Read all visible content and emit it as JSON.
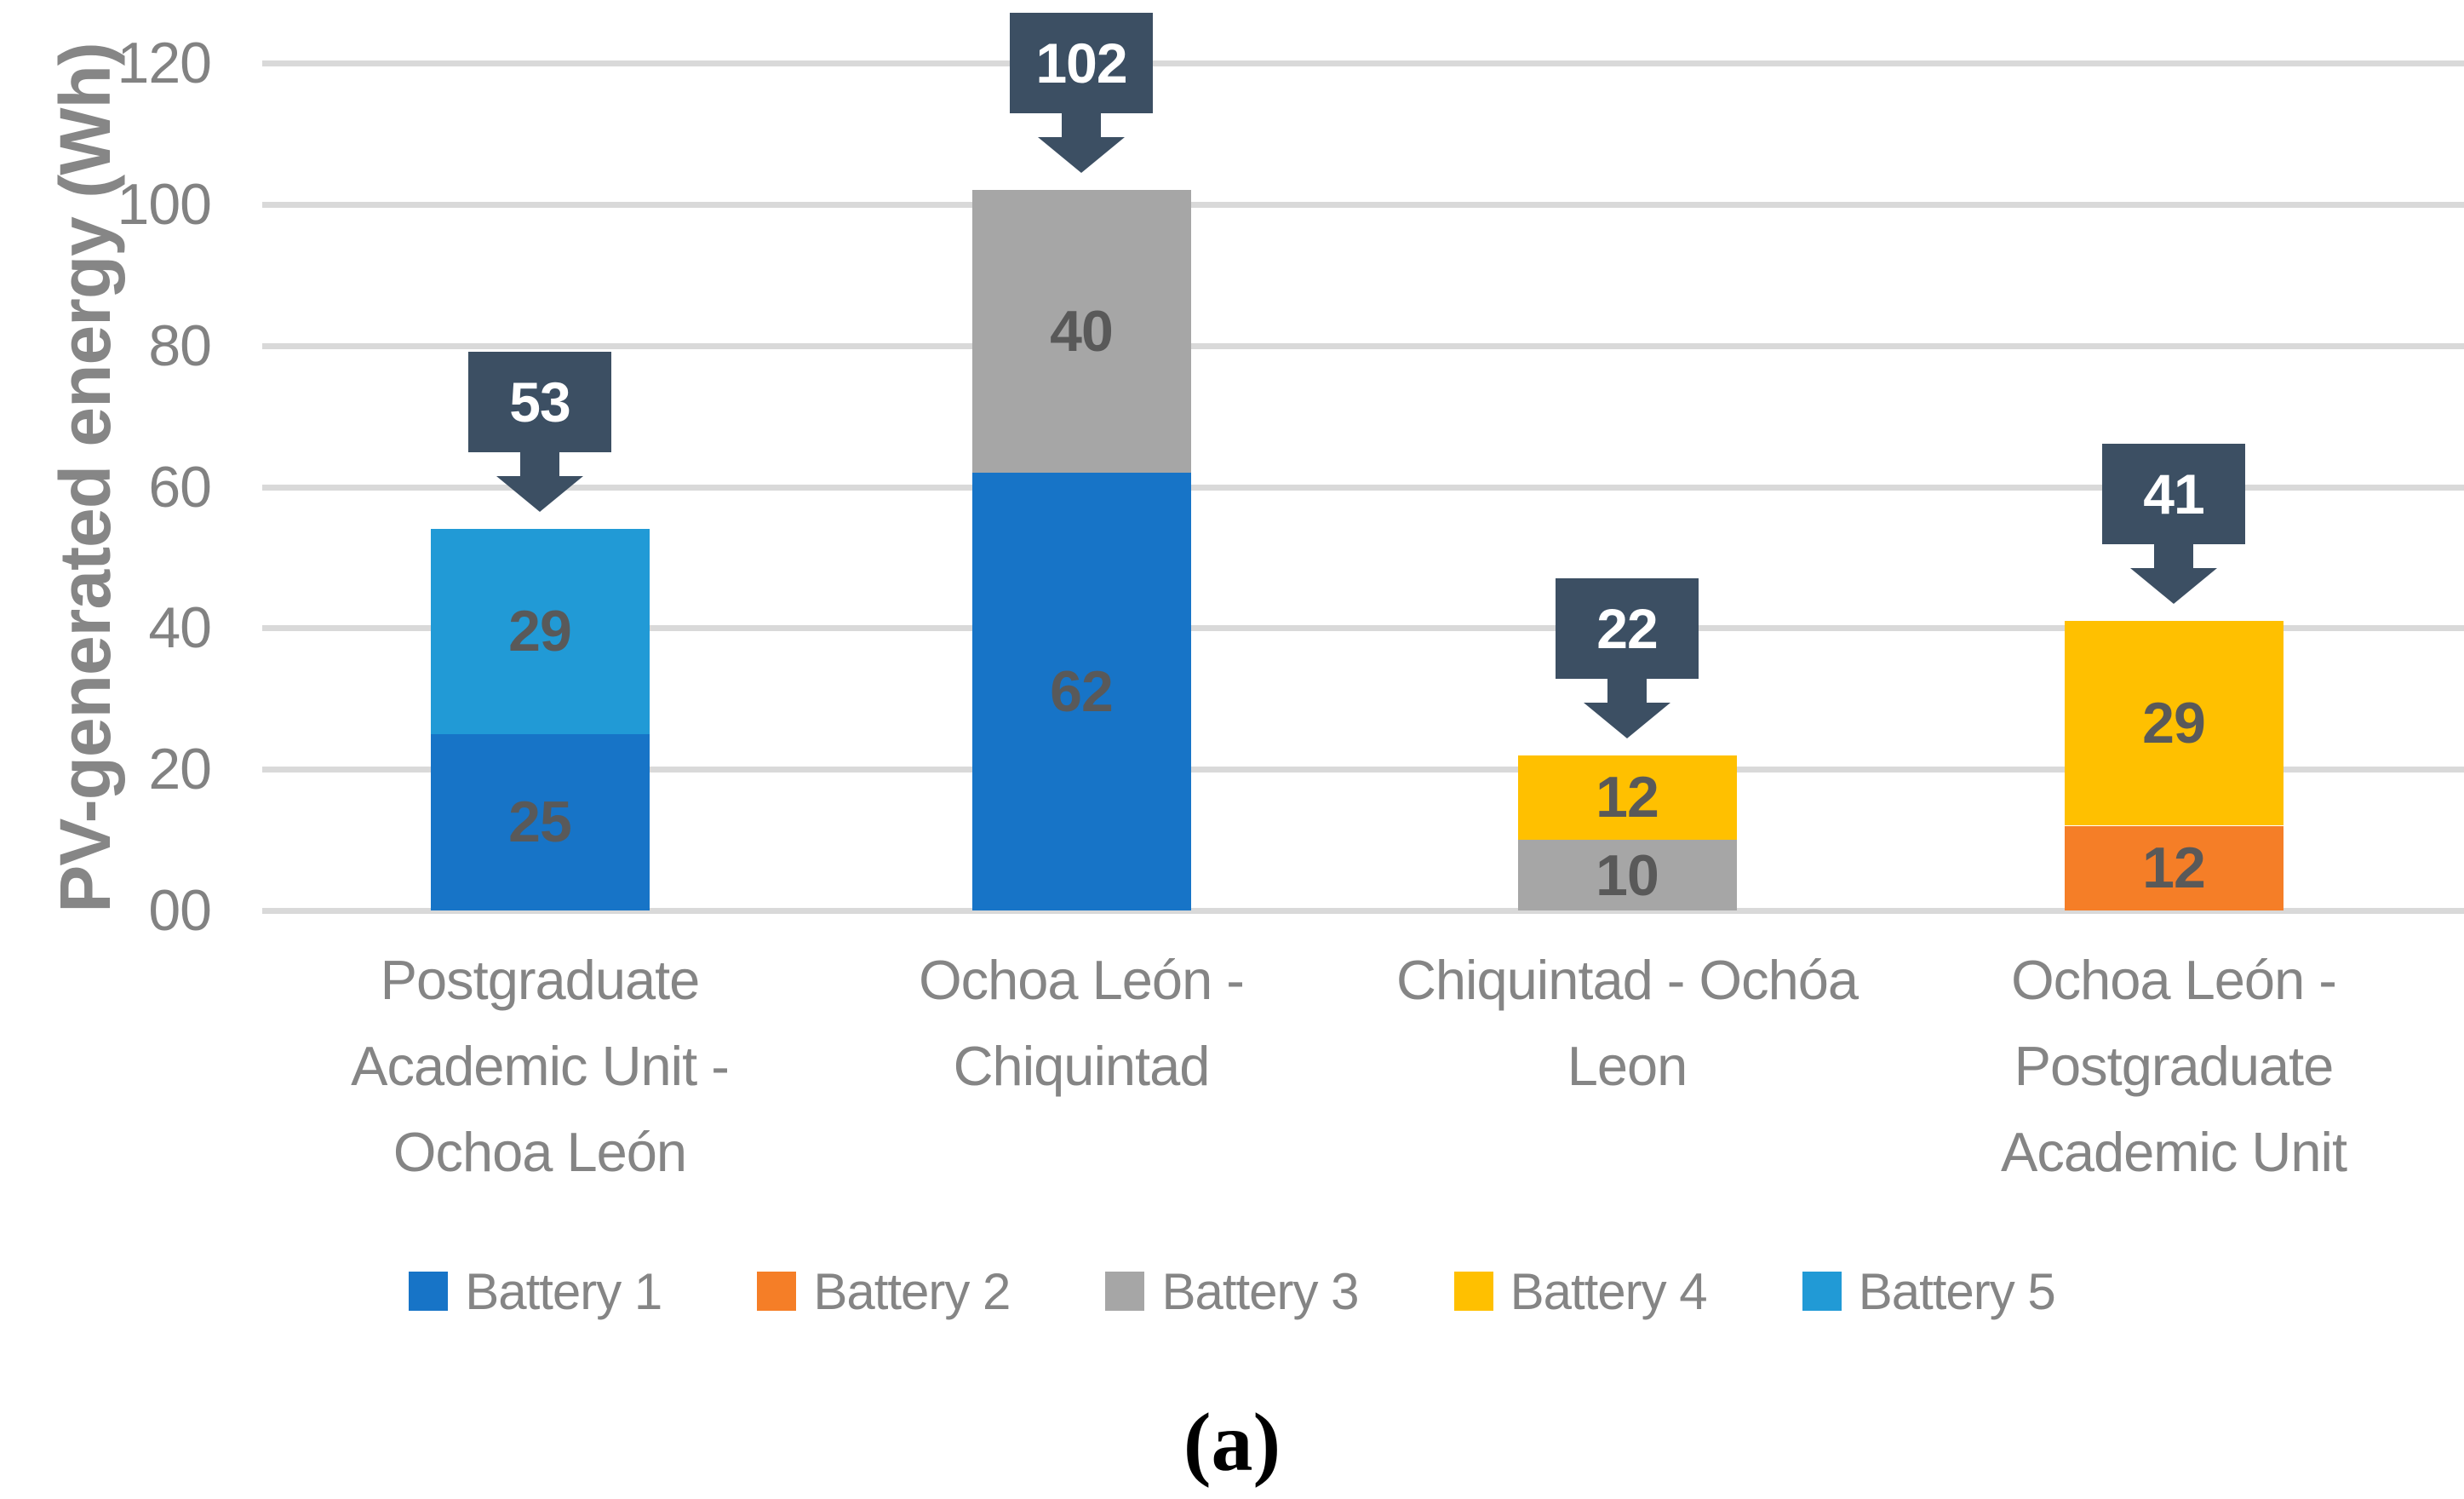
{
  "colors": {
    "callout_bg": "#3C4F63",
    "callout_text": "#FFFFFF",
    "gridline": "#D9D9D9",
    "axis_text": "#858585",
    "tick_text": "#828282",
    "segment_label": "#595959"
  },
  "chart_data": {
    "type": "bar",
    "stacked": true,
    "title": "",
    "ylabel": "PV-generated energy (Wh)",
    "xlabel": "",
    "caption": "(a)",
    "ylim": [
      0,
      120
    ],
    "grid": true,
    "legend_position": "bottom",
    "yticks": [
      {
        "value": 120,
        "label": "120"
      },
      {
        "value": 100,
        "label": "100"
      },
      {
        "value": 80,
        "label": "80"
      },
      {
        "value": 60,
        "label": "60"
      },
      {
        "value": 40,
        "label": "40"
      },
      {
        "value": 20,
        "label": "20"
      },
      {
        "value": 0,
        "label": "00"
      }
    ],
    "categories": [
      {
        "label": "Postgraduate Academic Unit - Ochoa León",
        "lines": [
          "Postgraduate",
          "Academic Unit -",
          "Ochoa León"
        ]
      },
      {
        "label": "Ochoa León - Chiquintad",
        "lines": [
          "Ochoa León -",
          "Chiquintad"
        ]
      },
      {
        "label": "Chiquintad - Ochóa Leon",
        "lines": [
          "Chiquintad - Ochóa",
          "Leon"
        ]
      },
      {
        "label": "Ochoa León - Postgraduate Academic Unit",
        "lines": [
          "Ochoa León -",
          "Postgraduate",
          "Academic Unit"
        ]
      }
    ],
    "series": [
      {
        "name": "Battery 1",
        "color": "#1774C7",
        "values": [
          25,
          62,
          0,
          0
        ]
      },
      {
        "name": "Battery 2",
        "color": "#F57E27",
        "values": [
          0,
          0,
          0,
          12
        ]
      },
      {
        "name": "Battery 3",
        "color": "#A6A6A6",
        "values": [
          0,
          40,
          10,
          0
        ]
      },
      {
        "name": "Battery 4",
        "color": "#FFC000",
        "values": [
          0,
          0,
          12,
          29
        ]
      },
      {
        "name": "Battery 5",
        "color": "#219AD6",
        "values": [
          29,
          0,
          0,
          0
        ]
      }
    ],
    "stack_order": [
      [
        "Battery 1",
        "Battery 5"
      ],
      [
        "Battery 1",
        "Battery 3"
      ],
      [
        "Battery 3",
        "Battery 4"
      ],
      [
        "Battery 2",
        "Battery 4"
      ]
    ],
    "totals": [
      53,
      102,
      22,
      41
    ],
    "legend": [
      "Battery 1",
      "Battery 2",
      "Battery 3",
      "Battery 4",
      "Battery 5"
    ]
  }
}
